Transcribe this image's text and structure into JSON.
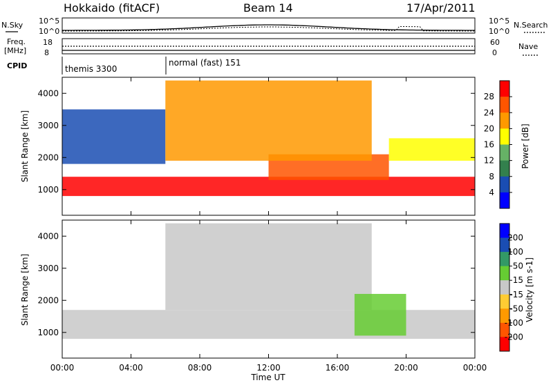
{
  "header": {
    "radar": "Hokkaido (fitACF)",
    "beam": "Beam 14",
    "date": "17/Apr/2011"
  },
  "top_panel": {
    "left_label": "N.Sky",
    "right_label": "N.Search",
    "left_ticks": [
      "10^5",
      "10^0"
    ],
    "right_ticks": [
      "10^5",
      "10^0"
    ]
  },
  "freq_panel": {
    "left_label_1": "Freq.",
    "left_label_2": "[MHz]",
    "right_label": "Nave",
    "left_ticks": [
      "18",
      "8"
    ],
    "right_ticks": [
      "60",
      "0"
    ]
  },
  "cpid": {
    "label": "CPID",
    "segments": [
      "themis 3300",
      "normal (fast) 151"
    ]
  },
  "colors": {
    "frame": "#000000",
    "power_scale": [
      "#0000ff",
      "#1a4db3",
      "#33804d",
      "#66b266",
      "#ffff00",
      "#ff9900",
      "#ff5500",
      "#ff0000"
    ],
    "velocity_scale": [
      "#0000ff",
      "#1a4db3",
      "#339966",
      "#66cc33",
      "#c8c8c8",
      "#ffcc33",
      "#ff9900",
      "#ff5500",
      "#ff0000"
    ],
    "ground_scatter": "#c8c8c8"
  },
  "chart_data": [
    {
      "type": "heatmap",
      "name": "power",
      "ylabel": "Slant Range [km]",
      "yticks": [
        "1000",
        "2000",
        "3000",
        "4000"
      ],
      "ylim": [
        200,
        4500
      ],
      "colorbar_label": "Power [dB]",
      "colorbar_ticks": [
        "4",
        "8",
        "12",
        "16",
        "20",
        "24",
        "28"
      ],
      "colorbar_range": [
        0,
        32
      ],
      "bands": [
        {
          "t0": 0,
          "t1": 24,
          "r0": 800,
          "r1": 1400,
          "value": 28
        },
        {
          "t0": 12,
          "t1": 19,
          "r0": 1300,
          "r1": 2100,
          "value": 26
        },
        {
          "t0": 0,
          "t1": 6,
          "r0": 1800,
          "r1": 3500,
          "value": 6
        },
        {
          "t0": 6,
          "t1": 18,
          "r0": 1900,
          "r1": 4400,
          "value": 22
        },
        {
          "t0": 19,
          "t1": 24,
          "r0": 1900,
          "r1": 2600,
          "value": 16
        }
      ]
    },
    {
      "type": "heatmap",
      "name": "velocity",
      "ylabel": "Slant Range [km]",
      "yticks": [
        "1000",
        "2000",
        "3000",
        "4000"
      ],
      "ylim": [
        200,
        4500
      ],
      "colorbar_label": "Velocity [m s-1]",
      "colorbar_ticks": [
        "200",
        "100",
        "50",
        "15",
        "-15",
        "-50",
        "-100",
        "-200"
      ],
      "colorbar_range": [
        -250,
        250
      ],
      "bands": [
        {
          "t0": 0,
          "t1": 24,
          "r0": 800,
          "r1": 1700,
          "value": 0
        },
        {
          "t0": 6,
          "t1": 18,
          "r0": 1700,
          "r1": 4400,
          "value": 0
        },
        {
          "t0": 17,
          "t1": 20,
          "r0": 900,
          "r1": 2200,
          "value": 60
        }
      ]
    }
  ],
  "x_axis": {
    "label": "Time UT",
    "ticks": [
      "00:00",
      "04:00",
      "08:00",
      "12:00",
      "16:00",
      "20:00",
      "00:00"
    ],
    "range_hours": [
      0,
      24
    ]
  }
}
